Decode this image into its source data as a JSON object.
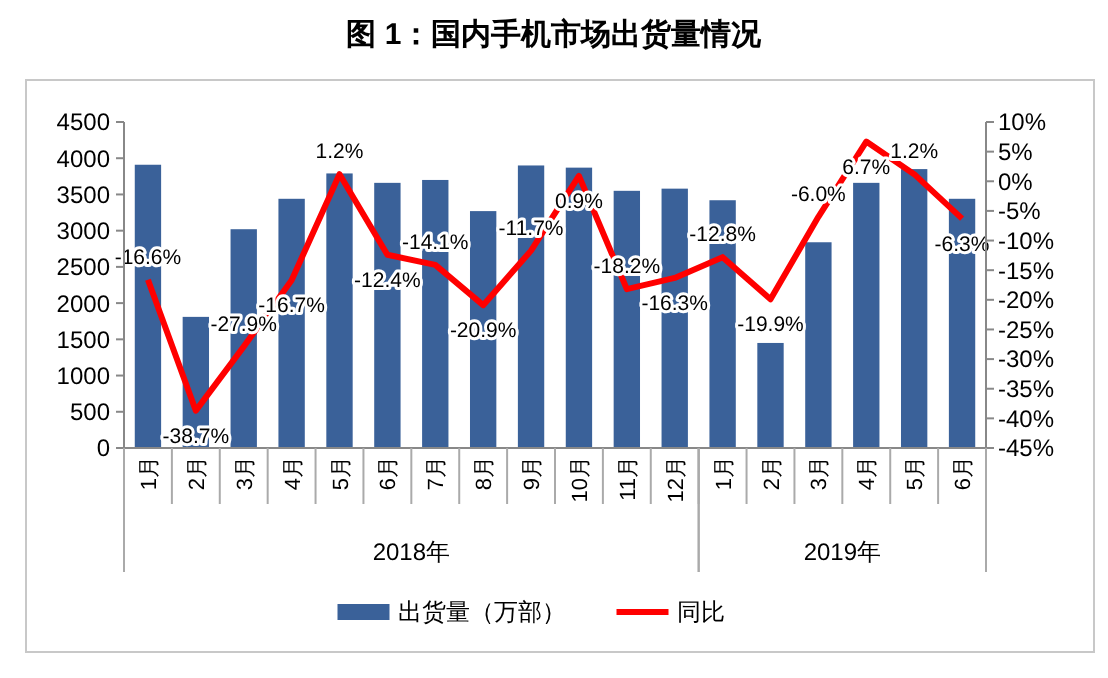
{
  "chart_data": {
    "type": "bar",
    "title": "图 1：国内手机市场出货量情况",
    "categories": [
      "1月",
      "2月",
      "3月",
      "4月",
      "5月",
      "6月",
      "7月",
      "8月",
      "9月",
      "10月",
      "11月",
      "12月",
      "1月",
      "2月",
      "3月",
      "4月",
      "5月",
      "6月"
    ],
    "series": [
      {
        "name": "出货量（万部）",
        "color": "#3a6199",
        "values": [
          3910,
          1810,
          3020,
          3440,
          3790,
          3660,
          3700,
          3270,
          3900,
          3870,
          3550,
          3580,
          3420,
          1450,
          2840,
          3660,
          3850,
          3440
        ]
      },
      {
        "name": "同比",
        "type": "line",
        "axis": "y2",
        "color": "#ff0000",
        "values": [
          -16.6,
          -38.7,
          -27.9,
          -16.7,
          1.2,
          -12.4,
          -14.1,
          -20.9,
          -11.7,
          0.9,
          -18.2,
          -16.3,
          -12.8,
          -19.9,
          -6.0,
          6.7,
          1.2,
          -6.3
        ],
        "value_labels": [
          "-16.6%",
          "-38.7%",
          "-27.9%",
          "-16.7%",
          "1.2%",
          "-12.4%",
          "-14.1%",
          "-20.9%",
          "-11.7%",
          "0.9%",
          "-18.2%",
          "-16.3%",
          "-12.8%",
          "-19.9%",
          "-6.0%",
          "6.7%",
          "1.2%",
          "-6.3%"
        ]
      }
    ],
    "ylim": [
      0,
      4500
    ],
    "yticks": [
      0,
      500,
      1000,
      1500,
      2000,
      2500,
      3000,
      3500,
      4000,
      4500
    ],
    "y2lim": [
      -45,
      10
    ],
    "y2ticks": [
      {
        "value": -45,
        "label": "-45%"
      },
      {
        "value": -40,
        "label": "-40%"
      },
      {
        "value": -35,
        "label": "-35%"
      },
      {
        "value": -30,
        "label": "-30%"
      },
      {
        "value": -25,
        "label": "-25%"
      },
      {
        "value": -20,
        "label": "-20%"
      },
      {
        "value": -15,
        "label": "-15%"
      },
      {
        "value": -10,
        "label": "-10%"
      },
      {
        "value": -5,
        "label": "-5%"
      },
      {
        "value": 0,
        "label": "0%"
      },
      {
        "value": 5,
        "label": "5%"
      },
      {
        "value": 10,
        "label": "10%"
      }
    ],
    "annotations": [
      "2018年",
      "2019年"
    ],
    "legend": "bottom",
    "grid": false
  }
}
